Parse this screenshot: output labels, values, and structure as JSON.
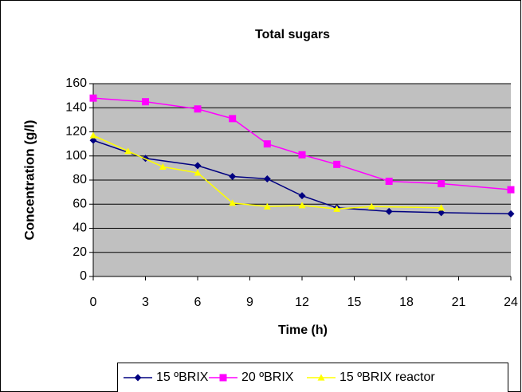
{
  "chart_data": {
    "type": "line",
    "title": "Total sugars",
    "x_label": "Time (h)",
    "y_label": "Concentration (g/l)",
    "xlim": [
      0,
      24
    ],
    "xticks": [
      0,
      3,
      6,
      9,
      12,
      15,
      18,
      21,
      24
    ],
    "ylim": [
      0,
      160
    ],
    "yticks": [
      0,
      20,
      40,
      60,
      80,
      100,
      120,
      140,
      160
    ],
    "grid": true,
    "legend": "bottom",
    "series": [
      {
        "name": "15 ºBRIX",
        "color": "#000080",
        "marker": "diamond",
        "x": [
          0,
          3,
          6,
          8,
          10,
          12,
          14,
          17,
          20,
          24
        ],
        "values": [
          113,
          98,
          92,
          83,
          81,
          67,
          57,
          54,
          53,
          52
        ]
      },
      {
        "name": "20 ºBRIX",
        "color": "#ff00ff",
        "marker": "square",
        "x": [
          0,
          3,
          6,
          8,
          10,
          12,
          14,
          17,
          20,
          24
        ],
        "values": [
          148,
          145,
          139,
          131,
          110,
          101,
          93,
          79,
          77,
          72
        ]
      },
      {
        "name": "15 ºBRIX reactor",
        "color": "#ffff00",
        "marker": "triangle",
        "x": [
          0,
          2,
          4,
          6,
          8,
          10,
          12,
          14,
          16,
          20
        ],
        "values": [
          117,
          104,
          91,
          86,
          61,
          58,
          59,
          56,
          58,
          57
        ]
      }
    ]
  }
}
